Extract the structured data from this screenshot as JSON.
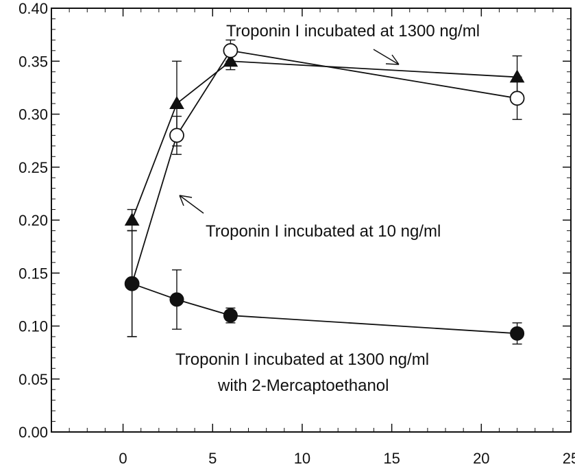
{
  "chart_data": {
    "type": "line",
    "title": "",
    "xlabel": "",
    "ylabel": "",
    "xlim": [
      -4,
      25
    ],
    "ylim": [
      0,
      0.4
    ],
    "x_ticks": [
      0,
      5,
      10,
      15,
      20,
      25
    ],
    "y_ticks": [
      0.0,
      0.05,
      0.1,
      0.15,
      0.2,
      0.25,
      0.3,
      0.35,
      0.4
    ],
    "x_tick_labels": [
      "0",
      "5",
      "10",
      "15",
      "20",
      "25"
    ],
    "y_tick_labels": [
      "0.00",
      "0.05",
      "0.10",
      "0.15",
      "0.20",
      "0.25",
      "0.30",
      "0.35",
      "0.40"
    ],
    "grid": false,
    "series": [
      {
        "marker": "triangle-filled",
        "x": [
          0.5,
          3,
          6,
          22
        ],
        "y": [
          0.2,
          0.31,
          0.35,
          0.335
        ],
        "err": [
          0.01,
          0.04,
          0.008,
          0.02
        ]
      },
      {
        "marker": "circle-open",
        "x": [
          0.5,
          3,
          6,
          22
        ],
        "y": [
          0.14,
          0.28,
          0.36,
          0.315
        ],
        "err": [
          0.05,
          0.018,
          0.01,
          0.02
        ]
      },
      {
        "marker": "circle-filled",
        "x": [
          0.5,
          3,
          6,
          22
        ],
        "y": [
          0.14,
          0.125,
          0.11,
          0.093
        ],
        "err": [
          0.05,
          0.028,
          0.007,
          0.01
        ]
      }
    ],
    "annotations": [
      {
        "lines": [
          "Troponin I incubated at 1300 ng/ml"
        ]
      },
      {
        "lines": [
          "Troponin I incubated at 10 ng/ml"
        ]
      },
      {
        "lines": [
          "Troponin I incubated at 1300 ng/ml",
          "with 2-Mercaptoethanol"
        ]
      }
    ]
  }
}
